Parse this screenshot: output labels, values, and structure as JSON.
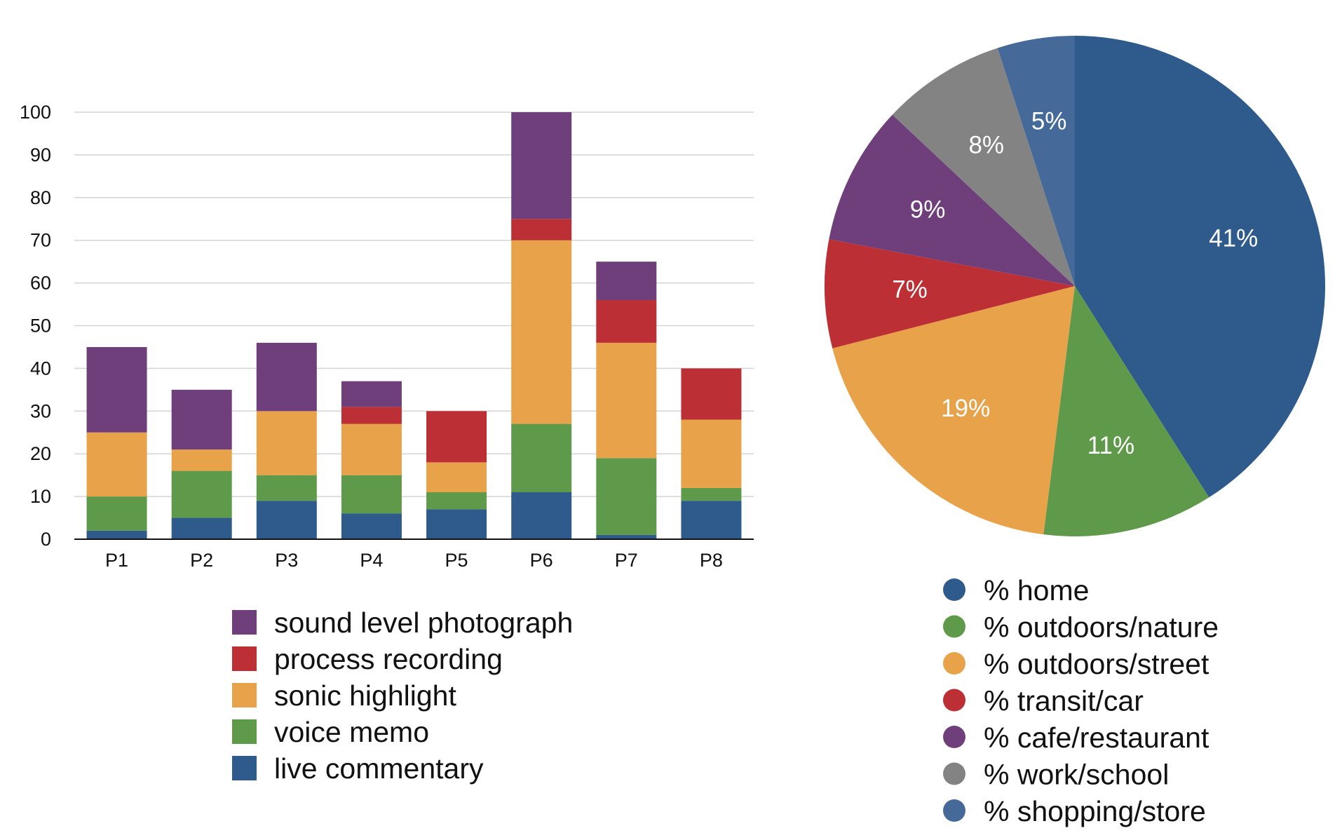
{
  "chart_data": [
    {
      "type": "bar",
      "stacked": true,
      "categories": [
        "P1",
        "P2",
        "P3",
        "P4",
        "P5",
        "P6",
        "P7",
        "P8"
      ],
      "ylim": [
        0,
        100
      ],
      "yticks": [
        0,
        10,
        20,
        30,
        40,
        50,
        60,
        70,
        80,
        90,
        100
      ],
      "grid": true,
      "legend_placement": "bottom",
      "series": [
        {
          "name": "live commentary",
          "color": "#2f5a8c",
          "values": [
            2,
            5,
            9,
            6,
            7,
            11,
            1,
            9
          ]
        },
        {
          "name": "voice memo",
          "color": "#5f9a4b",
          "values": [
            8,
            11,
            6,
            9,
            4,
            16,
            18,
            3
          ]
        },
        {
          "name": "sonic highlight",
          "color": "#e8a24a",
          "values": [
            15,
            5,
            15,
            12,
            7,
            43,
            27,
            16
          ]
        },
        {
          "name": "process recording",
          "color": "#bc2f35",
          "values": [
            0,
            0,
            0,
            4,
            12,
            5,
            10,
            12
          ]
        },
        {
          "name": "sound level photograph",
          "color": "#6f3f7c",
          "values": [
            20,
            14,
            16,
            6,
            0,
            25,
            9,
            0
          ]
        }
      ]
    },
    {
      "type": "pie",
      "legend_placement": "bottom",
      "slices": [
        {
          "name": "% home",
          "label": "41%",
          "value": 41,
          "color": "#2f5a8c"
        },
        {
          "name": "% outdoors/nature",
          "label": "11%",
          "value": 11,
          "color": "#5f9a4b"
        },
        {
          "name": "% outdoors/street",
          "label": "19%",
          "value": 19,
          "color": "#e8a24a"
        },
        {
          "name": "% transit/car",
          "label": "7%",
          "value": 7,
          "color": "#bc2f35"
        },
        {
          "name": "% cafe/restaurant",
          "label": "9%",
          "value": 9,
          "color": "#6f3f7c"
        },
        {
          "name": "% work/school",
          "label": "8%",
          "value": 8,
          "color": "#838383"
        },
        {
          "name": "% shopping/store",
          "label": "5%",
          "value": 5,
          "color": "#456a99"
        }
      ]
    }
  ]
}
